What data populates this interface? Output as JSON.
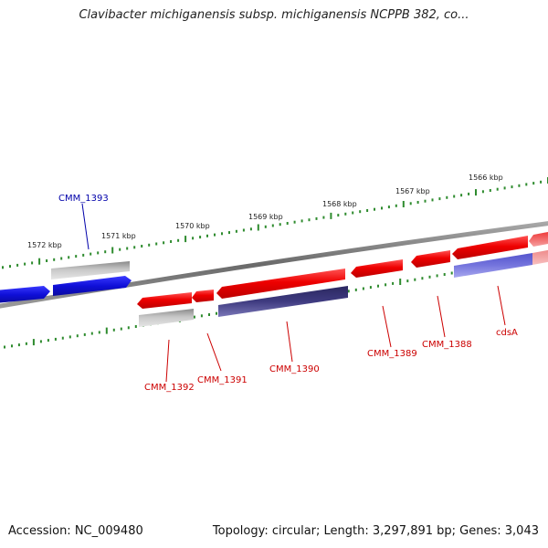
{
  "title": "Clavibacter michiganensis subsp. michiganensis NCPPB 382, co...",
  "footer": {
    "accession": "Accession: NC_009480",
    "summary": "Topology: circular; Length: 3,297,891 bp; Genes: 3,043"
  },
  "colors": {
    "backbone": "#7f7f7f",
    "ticks": "#2e8b2e",
    "label_red": "#cc0000",
    "label_blue": "#0000aa",
    "gene_red": "#ee1111",
    "gene_blue": "#1a1acc",
    "gene_gray": "#b0b0b0",
    "gene_navy": "#3d3a7a",
    "gene_lavender": "#7070dd",
    "gene_pink": "#ee9a9a"
  },
  "ruler_labels": [
    "1572 kbp",
    "1571 kbp",
    "1570 kbp",
    "1569 kbp",
    "1568 kbp",
    "1567 kbp",
    "1566 kbp"
  ],
  "gene_labels": [
    "CMM_1393",
    "CMM_1392",
    "CMM_1391",
    "CMM_1390",
    "CMM_1389",
    "CMM_1388",
    "cdsA"
  ]
}
